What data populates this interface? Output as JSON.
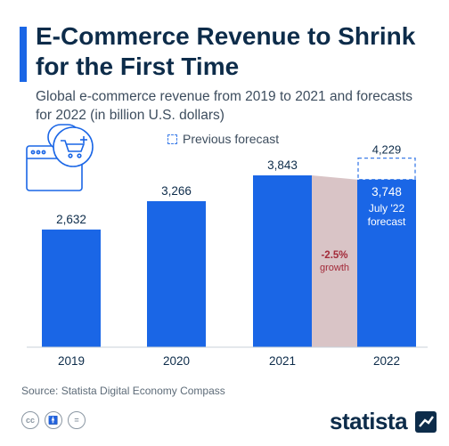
{
  "header": {
    "title": "E-Commerce Revenue to Shrink for the First Time",
    "subtitle": "Global e-commerce revenue from 2019 to 2021 and forecasts for 2022 (in billion U.S. dollars)"
  },
  "legend": {
    "previous_forecast_label": "Previous forecast"
  },
  "chart_data": {
    "type": "bar",
    "categories": [
      "2019",
      "2020",
      "2021",
      "2022"
    ],
    "values": [
      2632,
      3266,
      3843,
      3748
    ],
    "value_labels": [
      "2,632",
      "3,266",
      "3,843",
      "3,748"
    ],
    "previous_forecast": {
      "category": "2022",
      "value": 4229,
      "label": "4,229"
    },
    "forecast_note": [
      "July '22",
      "forecast"
    ],
    "change_annotation": [
      "-2.5%",
      "growth"
    ],
    "colors": {
      "bar": "#1a66e6",
      "bar_forecast": "#1a66e6",
      "change_band": "#d9c4c6",
      "change_text": "#a32b3a",
      "previous_outline": "#3d7de8"
    }
  },
  "footer": {
    "source": "Source: Statista Digital Economy Compass",
    "license_icons": [
      "cc-icon",
      "person-icon",
      "equals-icon"
    ],
    "brand": "statista"
  },
  "icons": {
    "illustration": "online-shopping-cart-icon"
  }
}
